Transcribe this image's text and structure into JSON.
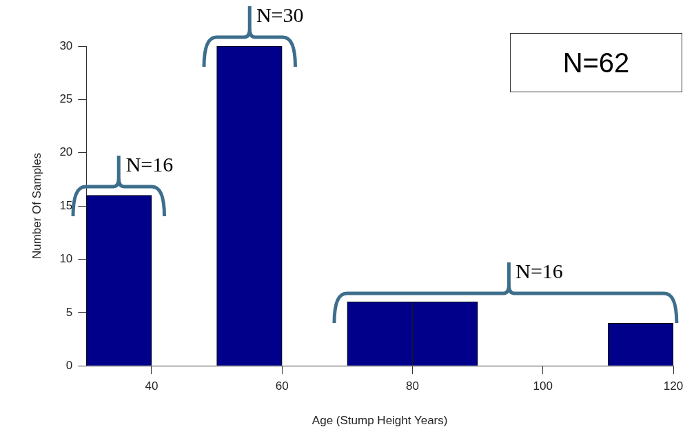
{
  "chart_data": {
    "type": "histogram",
    "xlabel": "Age (Stump Height Years)",
    "ylabel": "Number Of Samples",
    "bins": [
      30,
      40,
      50,
      60,
      70,
      80,
      90,
      100,
      110,
      120
    ],
    "values": [
      16,
      0,
      30,
      0,
      6,
      6,
      0,
      0,
      4
    ],
    "color": "#00008b",
    "xlim": [
      30,
      120
    ],
    "xticks": [
      40,
      60,
      80,
      100,
      120
    ],
    "ylim": [
      0,
      30
    ],
    "yticks": [
      0,
      5,
      10,
      15,
      20,
      25,
      30
    ],
    "annotations": [
      {
        "text": "N=16",
        "x": 35,
        "y": 16
      },
      {
        "text": "N=30",
        "x": 55,
        "y": 30
      },
      "N=16",
      "N=62"
    ]
  }
}
